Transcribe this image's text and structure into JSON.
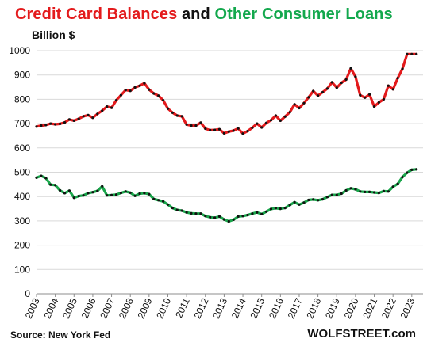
{
  "title": {
    "part1": "Credit Card Balances",
    "part2": " and ",
    "part3": "Other Consumer Loans"
  },
  "unit_label": "Billion $",
  "source": "Source: New York Fed",
  "brand": "WOLFSTREET.com",
  "colors": {
    "credit_card": "#e31a1c",
    "other_loans": "#1aa64b",
    "markers": "#111111",
    "grid": "#d9d9d9"
  },
  "chart_data": {
    "type": "line",
    "ylim": [
      0,
      1000
    ],
    "yticks": [
      0,
      100,
      200,
      300,
      400,
      500,
      600,
      700,
      800,
      900,
      1000
    ],
    "xlim": [
      2003,
      2023.6
    ],
    "xticks": [
      "2003",
      "2004",
      "2005",
      "2006",
      "2007",
      "2008",
      "2009",
      "2010",
      "2011",
      "2012",
      "2013",
      "2014",
      "2015",
      "2016",
      "2017",
      "2018",
      "2019",
      "2020",
      "2021",
      "2022",
      "2023"
    ],
    "grid": true,
    "legend": "none",
    "series": [
      {
        "name": "Credit Card Balances",
        "x": [
          2003.0,
          2003.25,
          2003.5,
          2003.75,
          2004.0,
          2004.25,
          2004.5,
          2004.75,
          2005.0,
          2005.25,
          2005.5,
          2005.75,
          2006.0,
          2006.25,
          2006.5,
          2006.75,
          2007.0,
          2007.25,
          2007.5,
          2007.75,
          2008.0,
          2008.25,
          2008.5,
          2008.75,
          2009.0,
          2009.25,
          2009.5,
          2009.75,
          2010.0,
          2010.25,
          2010.5,
          2010.75,
          2011.0,
          2011.25,
          2011.5,
          2011.75,
          2012.0,
          2012.25,
          2012.5,
          2012.75,
          2013.0,
          2013.25,
          2013.5,
          2013.75,
          2014.0,
          2014.25,
          2014.5,
          2014.75,
          2015.0,
          2015.25,
          2015.5,
          2015.75,
          2016.0,
          2016.25,
          2016.5,
          2016.75,
          2017.0,
          2017.25,
          2017.5,
          2017.75,
          2018.0,
          2018.25,
          2018.5,
          2018.75,
          2019.0,
          2019.25,
          2019.5,
          2019.75,
          2020.0,
          2020.25,
          2020.5,
          2020.75,
          2021.0,
          2021.25,
          2021.5,
          2021.75,
          2022.0,
          2022.25,
          2022.5,
          2022.75,
          2023.0,
          2023.25
        ],
        "values": [
          688,
          692,
          694,
          700,
          697,
          699,
          705,
          717,
          712,
          720,
          730,
          735,
          724,
          740,
          753,
          770,
          765,
          796,
          817,
          838,
          835,
          849,
          856,
          866,
          840,
          824,
          815,
          796,
          762,
          745,
          733,
          730,
          696,
          692,
          692,
          704,
          679,
          673,
          674,
          677,
          660,
          667,
          671,
          680,
          659,
          669,
          683,
          700,
          684,
          703,
          714,
          733,
          712,
          729,
          747,
          779,
          764,
          784,
          808,
          834,
          815,
          829,
          844,
          870,
          848,
          868,
          881,
          927,
          893,
          817,
          807,
          820,
          770,
          787,
          800,
          856,
          841,
          887,
          925,
          986,
          986,
          986
        ]
      },
      {
        "name": "Other Consumer Loans",
        "x": [
          2003.0,
          2003.25,
          2003.5,
          2003.75,
          2004.0,
          2004.25,
          2004.5,
          2004.75,
          2005.0,
          2005.25,
          2005.5,
          2005.75,
          2006.0,
          2006.25,
          2006.5,
          2006.75,
          2007.0,
          2007.25,
          2007.5,
          2007.75,
          2008.0,
          2008.25,
          2008.5,
          2008.75,
          2009.0,
          2009.25,
          2009.5,
          2009.75,
          2010.0,
          2010.25,
          2010.5,
          2010.75,
          2011.0,
          2011.25,
          2011.5,
          2011.75,
          2012.0,
          2012.25,
          2012.5,
          2012.75,
          2013.0,
          2013.25,
          2013.5,
          2013.75,
          2014.0,
          2014.25,
          2014.5,
          2014.75,
          2015.0,
          2015.25,
          2015.5,
          2015.75,
          2016.0,
          2016.25,
          2016.5,
          2016.75,
          2017.0,
          2017.25,
          2017.5,
          2017.75,
          2018.0,
          2018.25,
          2018.5,
          2018.75,
          2019.0,
          2019.25,
          2019.5,
          2019.75,
          2020.0,
          2020.25,
          2020.5,
          2020.75,
          2021.0,
          2021.25,
          2021.5,
          2021.75,
          2022.0,
          2022.25,
          2022.5,
          2022.75,
          2023.0,
          2023.25
        ],
        "values": [
          478,
          485,
          476,
          449,
          447,
          425,
          414,
          424,
          395,
          402,
          405,
          414,
          418,
          423,
          442,
          405,
          406,
          408,
          415,
          421,
          416,
          403,
          412,
          414,
          410,
          390,
          385,
          380,
          367,
          353,
          345,
          342,
          335,
          331,
          330,
          330,
          320,
          315,
          313,
          318,
          306,
          298,
          305,
          318,
          320,
          324,
          330,
          335,
          328,
          338,
          349,
          352,
          350,
          353,
          365,
          377,
          367,
          375,
          386,
          388,
          385,
          389,
          398,
          407,
          407,
          412,
          425,
          434,
          430,
          421,
          419,
          419,
          417,
          415,
          422,
          421,
          440,
          452,
          480,
          498,
          510,
          512
        ]
      }
    ]
  }
}
